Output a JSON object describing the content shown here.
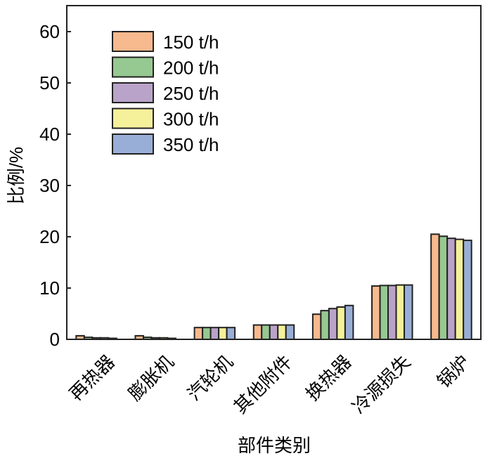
{
  "chart_data": {
    "type": "bar",
    "title": "",
    "xlabel": "部件类别",
    "ylabel": "比例/%",
    "ylim": [
      0,
      65
    ],
    "yticks": [
      0,
      10,
      20,
      30,
      40,
      50,
      60
    ],
    "grid": false,
    "legend_position": "top-left",
    "categories": [
      "再热器",
      "膨胀机",
      "汽轮机",
      "其他附件",
      "换热器",
      "冷源损失",
      "锅炉"
    ],
    "series": [
      {
        "name": "150 t/h",
        "color": "#f7b98e",
        "values": [
          0.7,
          0.7,
          2.3,
          2.8,
          4.9,
          10.4,
          20.5
        ]
      },
      {
        "name": "200 t/h",
        "color": "#96c891",
        "values": [
          0.4,
          0.4,
          2.3,
          2.8,
          5.6,
          10.5,
          20.1
        ]
      },
      {
        "name": "250 t/h",
        "color": "#b9a3c9",
        "values": [
          0.3,
          0.3,
          2.3,
          2.8,
          6.0,
          10.5,
          19.7
        ]
      },
      {
        "name": "300 t/h",
        "color": "#f5f09a",
        "values": [
          0.3,
          0.3,
          2.3,
          2.8,
          6.3,
          10.6,
          19.5
        ]
      },
      {
        "name": "350 t/h",
        "color": "#99aed6",
        "values": [
          0.2,
          0.2,
          2.3,
          2.8,
          6.6,
          10.6,
          19.3
        ]
      }
    ]
  }
}
